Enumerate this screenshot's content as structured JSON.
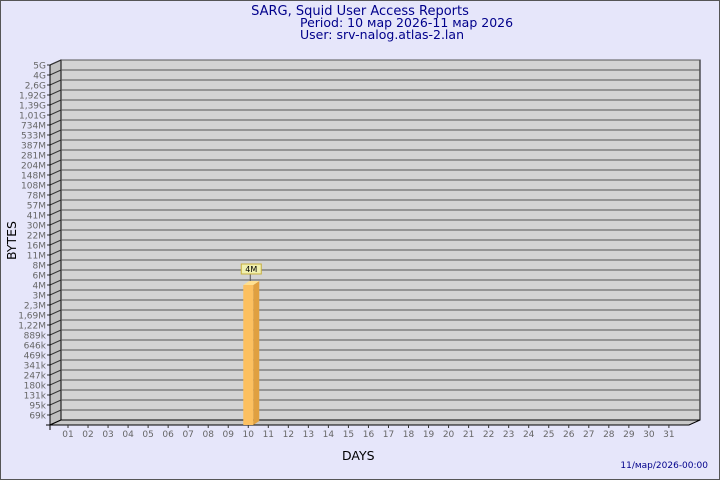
{
  "chart_data": {
    "type": "bar",
    "title": "SARG, Squid User Access Reports",
    "subtitle_period": "Period: 10 мар 2026-11 мар 2026",
    "subtitle_user": "User: srv-nalog.atlas-2.lan",
    "xlabel": "DAYS",
    "ylabel": "BYTES",
    "y_scale": "log",
    "y_tick_labels": [
      "5G",
      "4G",
      "2,6G",
      "1,92G",
      "1,39G",
      "1,01G",
      "734M",
      "533M",
      "387M",
      "281M",
      "204M",
      "148M",
      "108M",
      "78M",
      "57M",
      "41M",
      "30M",
      "22M",
      "16M",
      "11M",
      "8M",
      "6M",
      "4M",
      "3M",
      "2,3M",
      "1,69M",
      "1,22M",
      "889k",
      "646k",
      "469k",
      "341k",
      "247k",
      "180k",
      "131k",
      "95k",
      "69k"
    ],
    "categories": [
      "01",
      "02",
      "03",
      "04",
      "05",
      "06",
      "07",
      "08",
      "09",
      "10",
      "11",
      "12",
      "13",
      "14",
      "15",
      "16",
      "17",
      "18",
      "19",
      "20",
      "21",
      "22",
      "23",
      "24",
      "25",
      "26",
      "27",
      "28",
      "29",
      "30",
      "31"
    ],
    "values": [
      null,
      null,
      null,
      null,
      null,
      null,
      null,
      null,
      null,
      "4M",
      null,
      null,
      null,
      null,
      null,
      null,
      null,
      null,
      null,
      null,
      null,
      null,
      null,
      null,
      null,
      null,
      null,
      null,
      null,
      null,
      null
    ],
    "data_labels": [
      {
        "category": "10",
        "text": "4M"
      }
    ],
    "grid": true,
    "colors": {
      "bar_front": "#fcc060",
      "bar_side": "#e0a040",
      "bar_top": "#ffe090",
      "plot_bg": "#d3d3d3",
      "title": "#00008b"
    }
  },
  "footer": {
    "timestamp": "11/мар/2026-00:00"
  }
}
